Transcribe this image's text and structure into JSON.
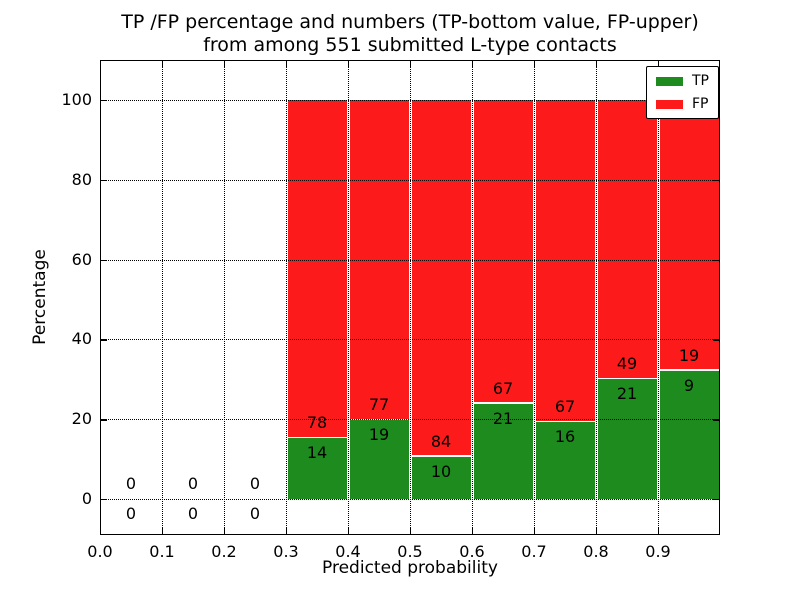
{
  "title": {
    "line1": "TP /FP percentage and numbers (TP-bottom value, FP-upper)",
    "line2": "from among 551 submitted L-type contacts"
  },
  "chart_data": {
    "type": "bar",
    "stacked": true,
    "title": "TP /FP percentage and numbers (TP-bottom value, FP-upper)\nfrom among 551 submitted L-type contacts",
    "xlabel": "Predicted probability",
    "ylabel": "Percentage",
    "xlim": [
      0.0,
      1.0
    ],
    "ylim": [
      -9,
      110
    ],
    "x_ticks": [
      "0.0",
      "0.1",
      "0.2",
      "0.3",
      "0.4",
      "0.5",
      "0.6",
      "0.7",
      "0.8",
      "0.9"
    ],
    "y_ticks": [
      0,
      20,
      40,
      60,
      80,
      100
    ],
    "grid": "dotted",
    "legend": {
      "position": "upper right",
      "entries": [
        {
          "label": "TP",
          "color": "#1e8b1e"
        },
        {
          "label": "FP",
          "color": "#fc1a1a"
        }
      ]
    },
    "bins": [
      {
        "x0": 0.0,
        "x1": 0.1,
        "tp": 0,
        "fp": 0,
        "tp_pct": 0
      },
      {
        "x0": 0.1,
        "x1": 0.2,
        "tp": 0,
        "fp": 0,
        "tp_pct": 0
      },
      {
        "x0": 0.2,
        "x1": 0.3,
        "tp": 0,
        "fp": 0,
        "tp_pct": 0
      },
      {
        "x0": 0.3,
        "x1": 0.4,
        "tp": 14,
        "fp": 78,
        "tp_pct": 15.2
      },
      {
        "x0": 0.4,
        "x1": 0.5,
        "tp": 19,
        "fp": 77,
        "tp_pct": 19.8
      },
      {
        "x0": 0.5,
        "x1": 0.6,
        "tp": 10,
        "fp": 84,
        "tp_pct": 10.6
      },
      {
        "x0": 0.6,
        "x1": 0.7,
        "tp": 21,
        "fp": 67,
        "tp_pct": 23.9
      },
      {
        "x0": 0.7,
        "x1": 0.8,
        "tp": 16,
        "fp": 67,
        "tp_pct": 19.3
      },
      {
        "x0": 0.8,
        "x1": 0.9,
        "tp": 21,
        "fp": 49,
        "tp_pct": 30.0
      },
      {
        "x0": 0.9,
        "x1": 1.0,
        "tp": 9,
        "fp": 19,
        "tp_pct": 32.1
      }
    ]
  }
}
